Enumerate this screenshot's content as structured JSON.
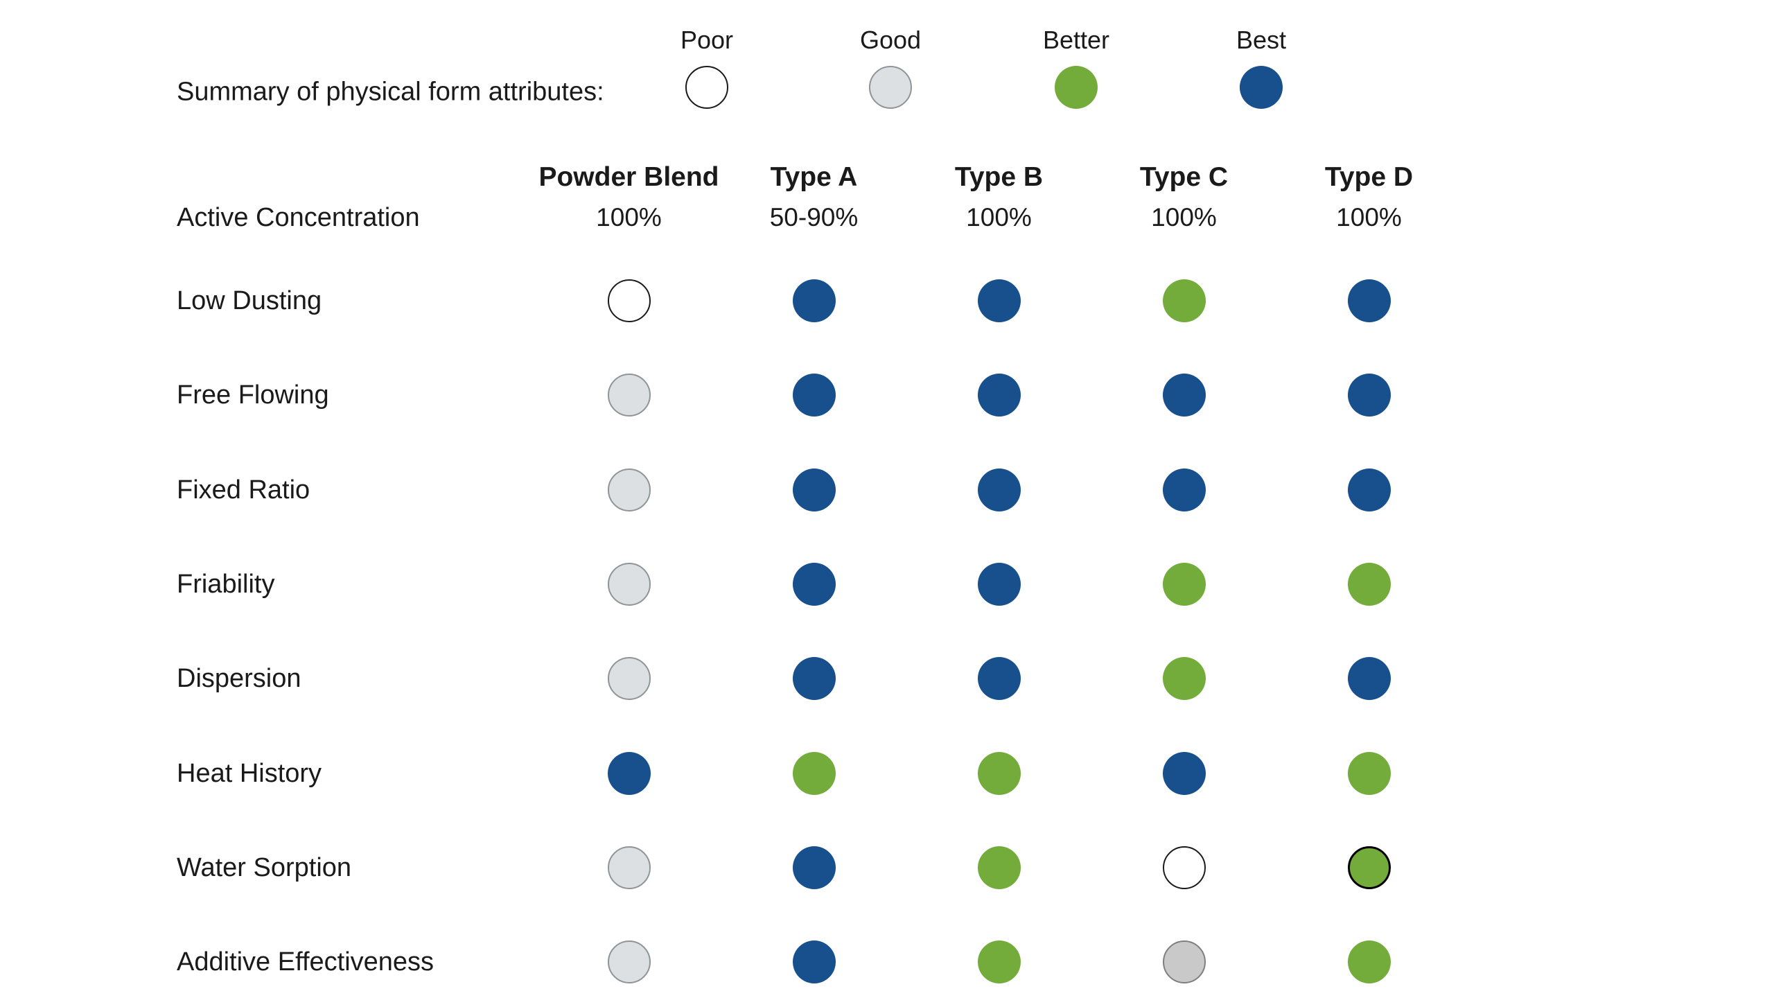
{
  "page": {
    "background_color": "#FFFFFF",
    "text_color": "#1A1A1A"
  },
  "chart_data": {
    "type": "table",
    "title": "Summary of physical form attributes:",
    "legend_position": "top",
    "legend": [
      {
        "label": "Poor",
        "rating": "poor"
      },
      {
        "label": "Good",
        "rating": "good"
      },
      {
        "label": "Better",
        "rating": "better"
      },
      {
        "label": "Best",
        "rating": "best"
      }
    ],
    "rating_colors": {
      "poor": {
        "fill": "#FFFFFF",
        "border": "#1A1A1A"
      },
      "good": {
        "fill": "#DDE0E2",
        "border": "#8E9498"
      },
      "better": {
        "fill": "#74AC3C"
      },
      "best": {
        "fill": "#17508C"
      },
      "grey": {
        "fill": "#C9C9C9",
        "border": "#7F7F7F"
      },
      "better-outlined": {
        "fill": "#74AC3C",
        "border": "#000000"
      }
    },
    "columns": [
      {
        "name": "Powder Blend",
        "active_concentration": "100%"
      },
      {
        "name": "Type A",
        "active_concentration": "50-90%"
      },
      {
        "name": "Type B",
        "active_concentration": "100%"
      },
      {
        "name": "Type C",
        "active_concentration": "100%"
      },
      {
        "name": "Type D",
        "active_concentration": "100%"
      }
    ],
    "row_header_label": "Active Concentration",
    "rows": [
      {
        "label": "Low Dusting",
        "ratings": [
          "poor",
          "best",
          "best",
          "better",
          "best"
        ]
      },
      {
        "label": "Free Flowing",
        "ratings": [
          "good",
          "best",
          "best",
          "best",
          "best"
        ]
      },
      {
        "label": "Fixed Ratio",
        "ratings": [
          "good",
          "best",
          "best",
          "best",
          "best"
        ]
      },
      {
        "label": "Friability",
        "ratings": [
          "good",
          "best",
          "best",
          "better",
          "better"
        ]
      },
      {
        "label": "Dispersion",
        "ratings": [
          "good",
          "best",
          "best",
          "better",
          "best"
        ]
      },
      {
        "label": "Heat History",
        "ratings": [
          "best",
          "better",
          "better",
          "best",
          "better"
        ]
      },
      {
        "label": "Water Sorption",
        "ratings": [
          "good",
          "best",
          "better",
          "poor",
          "better-outlined"
        ]
      },
      {
        "label": "Additive Effectiveness",
        "ratings": [
          "good",
          "best",
          "better",
          "grey",
          "better"
        ]
      }
    ]
  }
}
